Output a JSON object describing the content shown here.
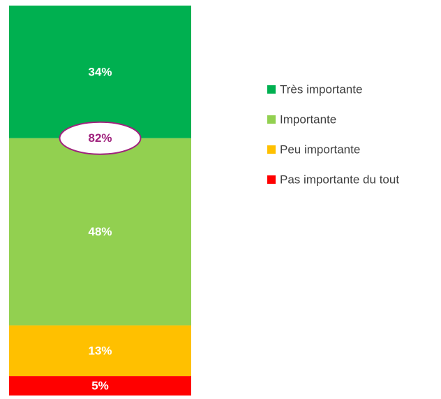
{
  "chart_data": {
    "type": "bar",
    "stacked": true,
    "categories": [
      null
    ],
    "series": [
      {
        "name": "Très importante",
        "color": "#00b050",
        "values": [
          34
        ],
        "value_labels": [
          "34%"
        ]
      },
      {
        "name": "Importante",
        "color": "#92d050",
        "values": [
          48
        ],
        "value_labels": [
          "48%"
        ]
      },
      {
        "name": "Peu importante",
        "color": "#ffc000",
        "values": [
          13
        ],
        "value_labels": [
          "13%"
        ]
      },
      {
        "name": "Pas importante du tout",
        "color": "#ff0000",
        "values": [
          5
        ],
        "value_labels": [
          "5%"
        ]
      }
    ],
    "ylim": [
      0,
      100
    ],
    "annotations": [
      {
        "text": "82%",
        "color": "#a0237e"
      }
    ],
    "legend": "right"
  }
}
